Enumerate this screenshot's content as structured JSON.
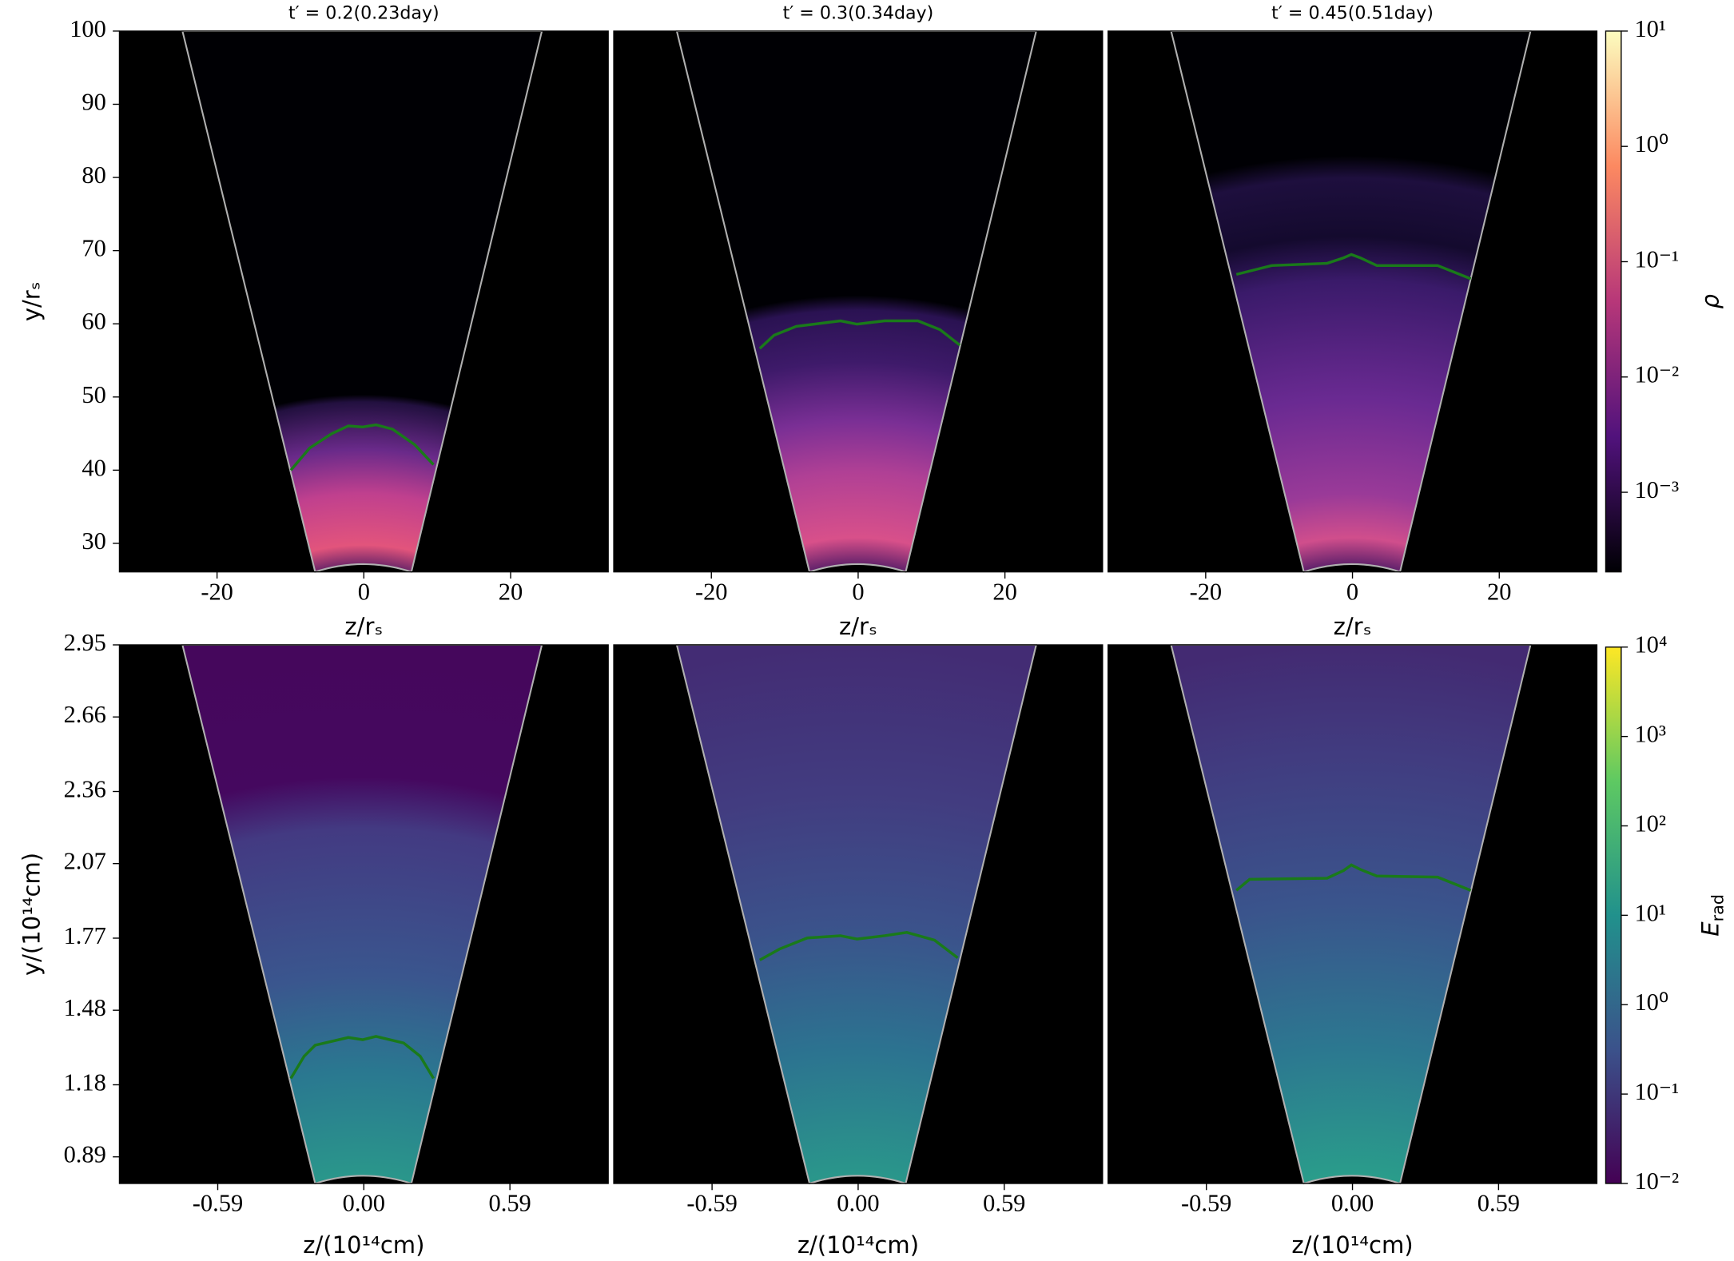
{
  "chart_data": [
    {
      "type": "heatmap",
      "title": "t′ = 0.2(0.23day)",
      "xlabel": "z/rₛ",
      "ylabel": "y/rₛ",
      "xlim": [
        -33.3,
        33.3
      ],
      "xticks": [
        -20,
        0,
        20
      ],
      "ylim": [
        26.1,
        100
      ],
      "yticks": [
        30,
        40,
        50,
        60,
        70,
        80,
        90,
        100
      ]
    },
    {
      "type": "heatmap",
      "title": "t′ = 0.3(0.34day)",
      "xlabel": "z/rₛ",
      "xlim": [
        -33.3,
        33.3
      ],
      "xticks": [
        -20,
        0,
        20
      ],
      "ylim": [
        26.1,
        100
      ]
    },
    {
      "type": "heatmap",
      "title": "t′ = 0.45(0.51day)",
      "xlabel": "z/rₛ",
      "xlim": [
        -33.3,
        33.3
      ],
      "xticks": [
        -20,
        0,
        20
      ],
      "ylim": [
        26.1,
        100
      ]
    },
    {
      "type": "heatmap",
      "xlabel": "z/(10¹⁴cm)",
      "ylabel": "y/(10¹⁴cm)",
      "xlim": [
        -0.987,
        0.987
      ],
      "xticks": [
        -0.59,
        {
          "value": 0,
          "label": "0.00"
        },
        0.59
      ],
      "ylim": [
        0.783,
        2.95
      ],
      "yticks": [
        0.89,
        1.18,
        1.48,
        1.77,
        2.07,
        2.36,
        2.66,
        2.95
      ]
    },
    {
      "type": "heatmap",
      "xlabel": "z/(10¹⁴cm)",
      "xlim": [
        -0.987,
        0.987
      ],
      "xticks": [
        -0.59,
        {
          "value": 0,
          "label": "0.00"
        },
        0.59
      ],
      "ylim": [
        0.783,
        2.95
      ]
    },
    {
      "type": "heatmap",
      "xlabel": "z/(10¹⁴cm)",
      "xlim": [
        -0.987,
        0.987
      ],
      "xticks": [
        -0.59,
        {
          "value": 0,
          "label": "0.00"
        },
        0.59
      ],
      "ylim": [
        0.783,
        2.95
      ]
    },
    {
      "type": "colorbar",
      "log_scale": true,
      "label": "ρ",
      "ylim": [
        0.000204,
        10
      ],
      "yticks": [
        {
          "value": 10,
          "label": "10¹"
        },
        {
          "value": 1,
          "label": "10⁰"
        },
        {
          "value": 0.1,
          "label": "10⁻¹"
        },
        {
          "value": 0.01,
          "label": "10⁻²"
        },
        {
          "value": 0.001,
          "label": "10⁻³"
        }
      ]
    },
    {
      "type": "colorbar",
      "log_scale": true,
      "label": {
        "base": "E",
        "sub": "rad"
      },
      "ylim": [
        0.01,
        10000
      ],
      "yticks": [
        {
          "value": 10000,
          "label": "10⁴"
        },
        {
          "value": 1000,
          "label": "10³"
        },
        {
          "value": 100,
          "label": "10²"
        },
        {
          "value": 10,
          "label": "10¹"
        },
        {
          "value": 1,
          "label": "10⁰"
        },
        {
          "value": 0.1,
          "label": "10⁻¹"
        },
        {
          "value": 0.01,
          "label": "10⁻²"
        }
      ]
    }
  ]
}
